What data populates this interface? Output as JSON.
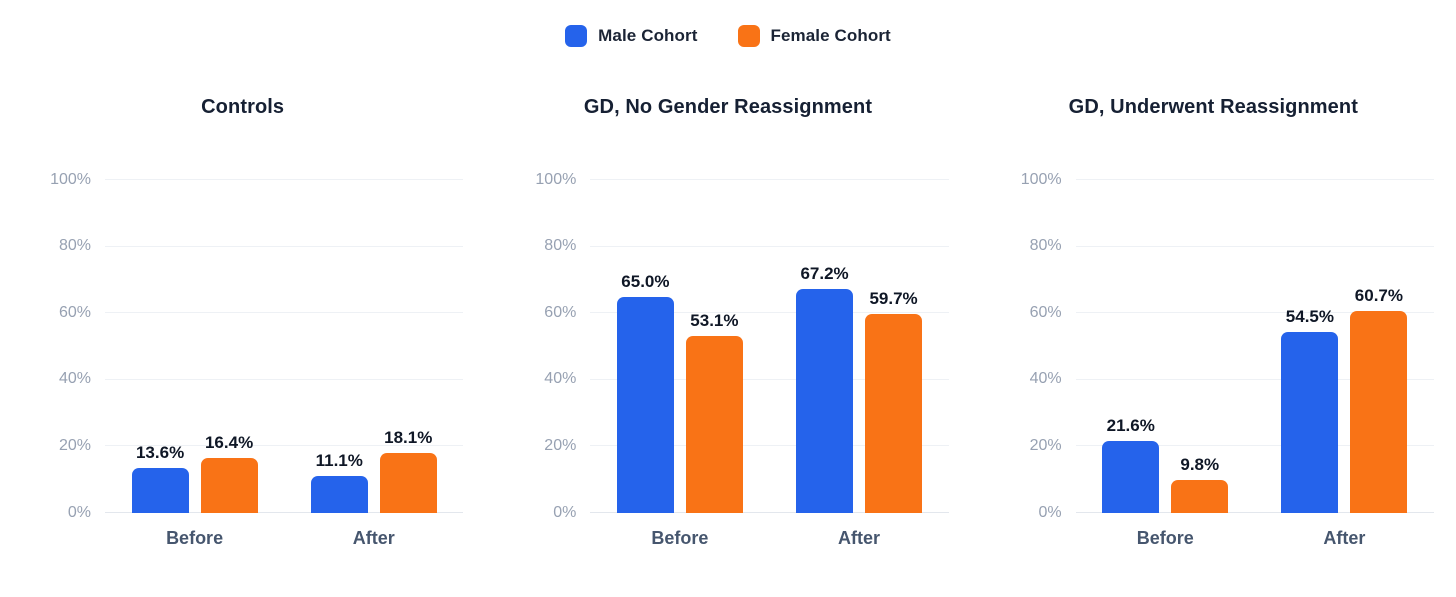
{
  "legend": {
    "items": [
      {
        "label": "Male Cohort",
        "color": "#2563eb"
      },
      {
        "label": "Female Cohort",
        "color": "#f97316"
      }
    ]
  },
  "axes": {
    "ymax": 100,
    "ytick_values": [
      0,
      20,
      40,
      60,
      80,
      100
    ],
    "ytick_labels": [
      "0%",
      "20%",
      "40%",
      "60%",
      "80%",
      "100%"
    ]
  },
  "colors": {
    "male_series": "#2563eb",
    "female_series": "#f97316",
    "grid_line": "#eef1f5",
    "baseline": "#e3e7ed",
    "tick_label_text": "#97a1b2",
    "category_label_text": "#46566e",
    "value_label_text": "#0f1726",
    "title_text": "#162033",
    "background": "#ffffff"
  },
  "chart_data": [
    {
      "type": "bar",
      "title": "Controls",
      "categories": [
        "Before",
        "After"
      ],
      "ylim": [
        0,
        100
      ],
      "grid": true,
      "legend_position": "top-center-shared",
      "series": [
        {
          "name": "Male Cohort",
          "values": [
            13.6,
            11.1
          ],
          "labels": [
            "13.6%",
            "11.1%"
          ]
        },
        {
          "name": "Female Cohort",
          "values": [
            16.4,
            18.1
          ],
          "labels": [
            "16.4%",
            "18.1%"
          ]
        }
      ]
    },
    {
      "type": "bar",
      "title": "GD, No Gender Reassignment",
      "categories": [
        "Before",
        "After"
      ],
      "ylim": [
        0,
        100
      ],
      "grid": true,
      "legend_position": "top-center-shared",
      "series": [
        {
          "name": "Male Cohort",
          "values": [
            65.0,
            67.2
          ],
          "labels": [
            "65.0%",
            "67.2%"
          ]
        },
        {
          "name": "Female Cohort",
          "values": [
            53.1,
            59.7
          ],
          "labels": [
            "53.1%",
            "59.7%"
          ]
        }
      ]
    },
    {
      "type": "bar",
      "title": "GD, Underwent Reassignment",
      "categories": [
        "Before",
        "After"
      ],
      "ylim": [
        0,
        100
      ],
      "grid": true,
      "legend_position": "top-center-shared",
      "series": [
        {
          "name": "Male Cohort",
          "values": [
            21.6,
            54.5
          ],
          "labels": [
            "21.6%",
            "54.5%"
          ]
        },
        {
          "name": "Female Cohort",
          "values": [
            9.8,
            60.7
          ],
          "labels": [
            "9.8%",
            "60.7%"
          ]
        }
      ]
    }
  ]
}
